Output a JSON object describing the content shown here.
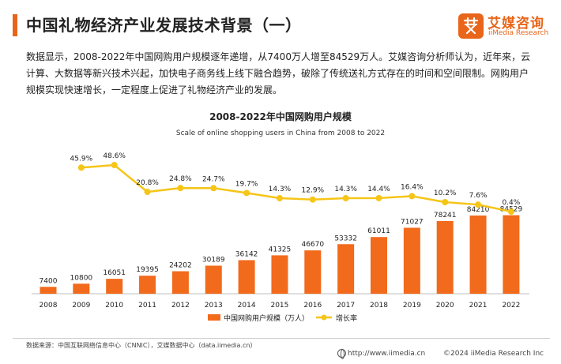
{
  "header": {
    "title": "中国礼物经济产业发展技术背景（一）",
    "logo_cn": "艾媒咨询",
    "logo_en": "iiMedia Research"
  },
  "description": "数据显示，2008-2022年中国网购用户规模逐年递增，从7400万人增至84529万人。艾媒咨询分析师认为，近年来，云计算、大数据等新兴技术兴起，加快电子商务线上线下融合趋势，破除了传统送礼方式存在的时间和空间限制。网购用户规模实现快速增长，一定程度上促进了礼物经济产业的发展。",
  "footer": {
    "source": "数据来源：中国互联网络信息中心（CNNIC），艾媒数据中心（data.iimedia.cn）",
    "site": "http://www.iimedia.cn",
    "copyright": "©2024  iiMedia Research  Inc"
  },
  "colors": {
    "accent": "#e8651a",
    "bar": "#f26a1b",
    "line": "#f5c518"
  },
  "chart_data": {
    "type": "bar",
    "title": "2008-2022年中国网购用户规模",
    "subtitle": "Scale of online shopping users in China from 2008 to 2022",
    "categories": [
      "2008",
      "2009",
      "2010",
      "2011",
      "2012",
      "2013",
      "2014",
      "2015",
      "2016",
      "2017",
      "2018",
      "2019",
      "2020",
      "2021",
      "2022"
    ],
    "series": [
      {
        "name": "中国网购用户规模（万人）",
        "type": "bar",
        "values": [
          7400,
          10800,
          16051,
          19395,
          24202,
          30189,
          36142,
          41325,
          46670,
          53332,
          61011,
          71027,
          78241,
          84210,
          84529
        ]
      },
      {
        "name": "增长率",
        "type": "line",
        "values": [
          null,
          45.9,
          48.6,
          20.8,
          24.8,
          24.7,
          19.7,
          14.3,
          12.9,
          14.3,
          14.4,
          16.4,
          10.2,
          7.6,
          0.4
        ],
        "labels": [
          "",
          "45.9%",
          "48.6%",
          "20.8%",
          "24.8%",
          "24.7%",
          "19.7%",
          "14.3%",
          "12.9%",
          "14.3%",
          "14.4%",
          "16.4%",
          "10.2%",
          "7.6%",
          "0.4%"
        ]
      }
    ],
    "legend_position": "bottom-center"
  }
}
